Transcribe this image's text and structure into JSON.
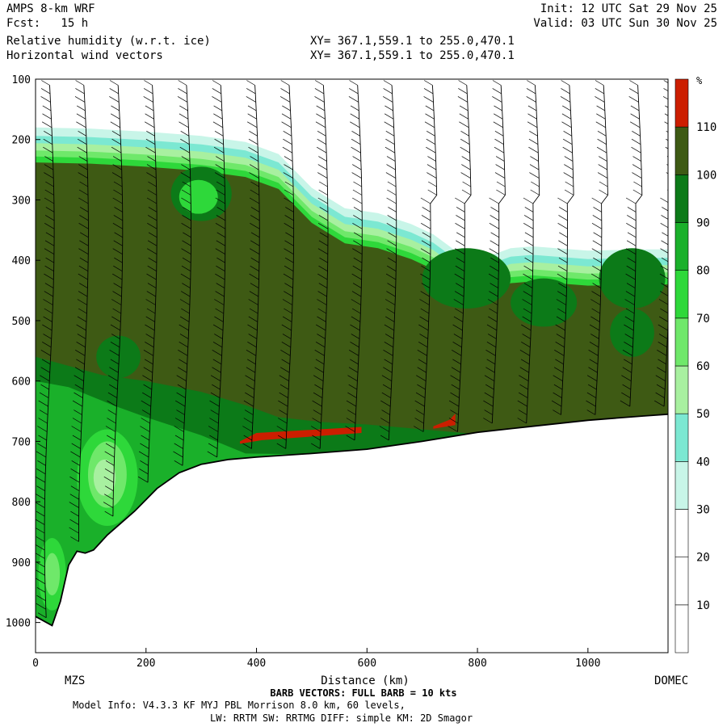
{
  "header": {
    "model": "AMPS 8-km WRF",
    "fcst": "Fcst:   15 h",
    "field1": "Relative humidity (w.r.t. ice)",
    "field2": "Horizontal wind vectors",
    "xy1": "XY= 367.1,559.1 to 255.0,470.1",
    "xy2": "XY= 367.1,559.1 to 255.0,470.1",
    "init": "Init: 12 UTC Sat 29 Nov 25",
    "valid": "Valid: 03 UTC Sun 30 Nov 25"
  },
  "footer": {
    "barb": "BARB VECTORS:  FULL BARB = 10 kts",
    "model_info": "Model Info: V4.3.3   KF      MYJ PBL  Morrison          8.0 km,  60 levels,",
    "model_info2": "LW: RRTM SW: RRTMG   DIFF: simple KM: 2D Smagor"
  },
  "chart_data": {
    "type": "heatmap",
    "xlabel": "Distance (km)",
    "x_start_label": "MZS",
    "x_end_label": "DOMEC",
    "xlim": [
      0,
      1145
    ],
    "x_ticks": [
      0,
      200,
      400,
      600,
      800,
      1000
    ],
    "ylim": [
      100,
      1050
    ],
    "y_ticks": [
      100,
      200,
      300,
      400,
      500,
      600,
      700,
      800,
      900,
      1000
    ],
    "colorbar": {
      "unit": "%",
      "levels": [
        10,
        20,
        30,
        40,
        50,
        60,
        70,
        80,
        90,
        100,
        110
      ],
      "colors": [
        "#ffffff",
        "#ffffff",
        "#ffffff",
        "#c8f5e8",
        "#7ce8d2",
        "#a8f0a0",
        "#6fe86a",
        "#2ed83a",
        "#1ab02a",
        "#0c7a18",
        "#3e5a14",
        "#cc1e00"
      ]
    },
    "terrain_surface": [
      [
        0,
        990
      ],
      [
        30,
        1005
      ],
      [
        45,
        965
      ],
      [
        60,
        905
      ],
      [
        75,
        882
      ],
      [
        90,
        885
      ],
      [
        105,
        880
      ],
      [
        130,
        855
      ],
      [
        180,
        815
      ],
      [
        220,
        778
      ],
      [
        260,
        752
      ],
      [
        300,
        738
      ],
      [
        350,
        730
      ],
      [
        400,
        726
      ],
      [
        500,
        720
      ],
      [
        600,
        713
      ],
      [
        700,
        700
      ],
      [
        800,
        685
      ],
      [
        900,
        675
      ],
      [
        1000,
        665
      ],
      [
        1100,
        658
      ],
      [
        1145,
        655
      ]
    ],
    "moist_top_100pct": [
      [
        0,
        238
      ],
      [
        100,
        240
      ],
      [
        200,
        245
      ],
      [
        300,
        252
      ],
      [
        380,
        262
      ],
      [
        440,
        282
      ],
      [
        500,
        338
      ],
      [
        560,
        372
      ],
      [
        620,
        380
      ],
      [
        680,
        398
      ],
      [
        720,
        415
      ],
      [
        760,
        442
      ],
      [
        800,
        458
      ],
      [
        860,
        438
      ],
      [
        900,
        435
      ],
      [
        1000,
        442
      ],
      [
        1100,
        440
      ],
      [
        1145,
        440
      ]
    ],
    "rh_over_110_zones": [
      {
        "x": [
          370,
          590
        ],
        "p": [
          682,
          700
        ]
      },
      {
        "x": [
          720,
          760
        ],
        "p": [
          660,
          675
        ]
      }
    ]
  }
}
